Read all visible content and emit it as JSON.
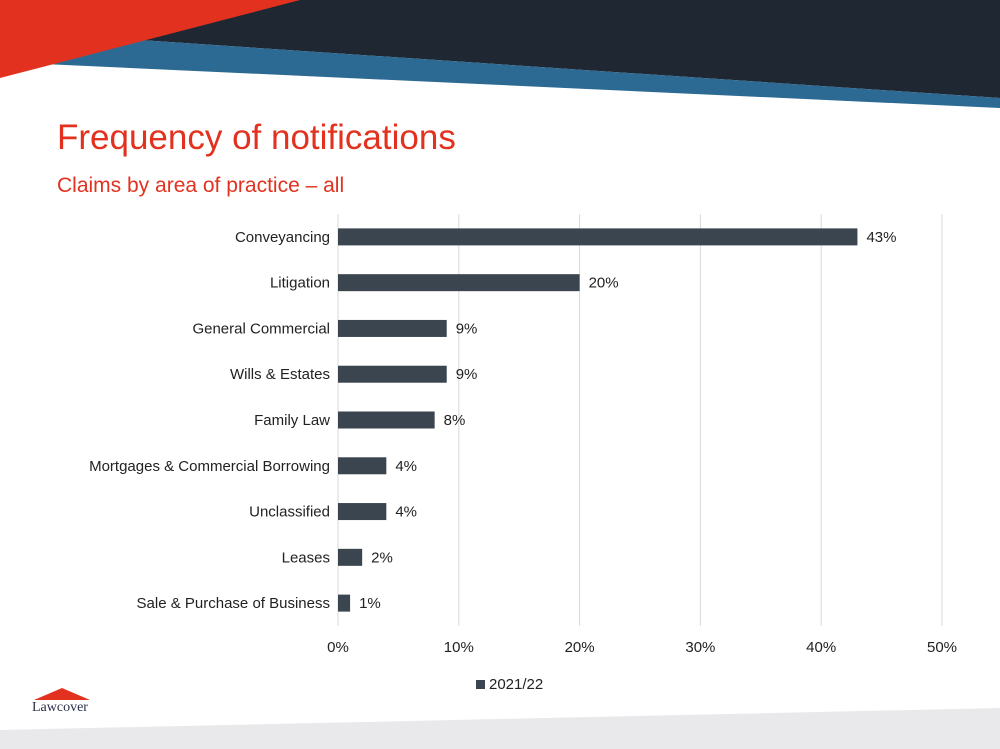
{
  "slide": {
    "title": "Frequency of notifications",
    "subtitle": "Claims by area of practice  – all",
    "logo_text": "Lawcover"
  },
  "colors": {
    "title": "#e2321f",
    "bar": "#3b4550",
    "banner_dark": "#1f2733",
    "banner_blue": "#2c6a93",
    "banner_red": "#e2321f",
    "grid": "#d9d9d9"
  },
  "chart_data": {
    "type": "bar",
    "orientation": "horizontal",
    "categories": [
      "Conveyancing",
      "Litigation",
      "General Commercial",
      "Wills & Estates",
      "Family Law",
      "Mortgages & Commercial Borrowing",
      "Unclassified",
      "Leases",
      "Sale & Purchase of Business"
    ],
    "series": [
      {
        "name": "2021/22",
        "values": [
          43,
          20,
          9,
          9,
          8,
          4,
          4,
          2,
          1
        ]
      }
    ],
    "value_labels": [
      "43%",
      "20%",
      "9%",
      "9%",
      "8%",
      "4%",
      "4%",
      "2%",
      "1%"
    ],
    "xlim": [
      0,
      50
    ],
    "x_ticks": [
      "0%",
      "10%",
      "20%",
      "30%",
      "40%",
      "50%"
    ],
    "grid": "vertical",
    "legend": "bottom"
  }
}
